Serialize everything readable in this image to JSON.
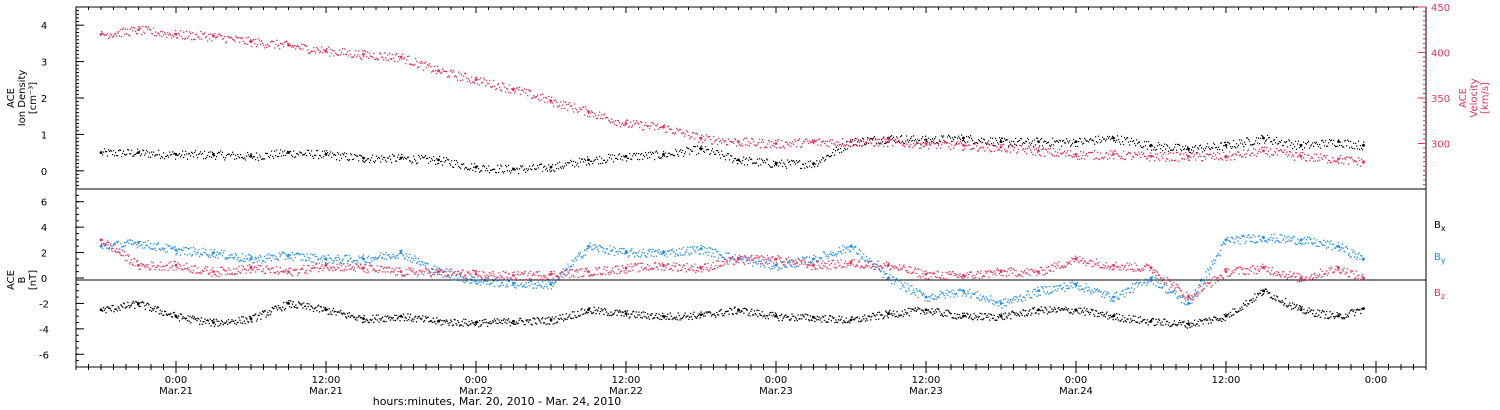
{
  "chart_data": [
    {
      "type": "scatter",
      "panel": "ion-density-velocity",
      "ylabel_left_lines": [
        "ACE",
        "Ion Density",
        "[cm⁻³]"
      ],
      "ylabel_right_lines": [
        "ACE",
        "Velocity",
        "[km/s]"
      ],
      "ylim_left": [
        -0.5,
        4.5
      ],
      "ylim_right": [
        250,
        450
      ],
      "yticks_left": [
        0,
        1,
        2,
        3,
        4
      ],
      "yticks_left_labels": [
        "0",
        "1",
        "2",
        "3",
        "4"
      ],
      "yticks_right": [
        300,
        350,
        400,
        450
      ],
      "yticks_right_labels": [
        "300",
        "350",
        "400",
        "450"
      ],
      "colors": {
        "density": "#000000",
        "velocity": "#e8305a"
      },
      "series": [
        {
          "axis": "left",
          "color": "#000000",
          "x": [
            -6,
            -3,
            0,
            3,
            6,
            9,
            12,
            15,
            18,
            21,
            24,
            27,
            30,
            33,
            36,
            39,
            42,
            45,
            48,
            51,
            54,
            57,
            60,
            63,
            66,
            69,
            72,
            75,
            78,
            81,
            84,
            87,
            90,
            93,
            95
          ],
          "values": [
            0.5,
            0.5,
            0.45,
            0.45,
            0.4,
            0.5,
            0.45,
            0.35,
            0.35,
            0.3,
            0.1,
            0.05,
            0.1,
            0.3,
            0.4,
            0.45,
            0.6,
            0.3,
            0.2,
            0.2,
            0.8,
            0.9,
            0.85,
            0.9,
            0.8,
            0.8,
            0.8,
            0.9,
            0.7,
            0.6,
            0.7,
            0.9,
            0.7,
            0.8,
            0.7
          ]
        },
        {
          "axis": "right",
          "color": "#e8305a",
          "x": [
            -6,
            -3,
            0,
            3,
            6,
            9,
            12,
            15,
            18,
            21,
            24,
            27,
            30,
            33,
            36,
            39,
            42,
            45,
            48,
            51,
            54,
            57,
            60,
            63,
            66,
            69,
            72,
            75,
            78,
            81,
            84,
            87,
            90,
            93,
            95
          ],
          "values": [
            420,
            425,
            420,
            418,
            412,
            408,
            402,
            398,
            395,
            380,
            370,
            360,
            347,
            335,
            322,
            318,
            306,
            302,
            300,
            302,
            302,
            302,
            300,
            298,
            296,
            292,
            288,
            288,
            286,
            286,
            286,
            292,
            286,
            283,
            280
          ]
        }
      ]
    },
    {
      "type": "scatter",
      "panel": "magnetic-field",
      "ylabel_lines": [
        "ACE",
        "B",
        "[nT]"
      ],
      "ylim": [
        -7,
        7
      ],
      "yticks": [
        -6,
        -4,
        -2,
        0,
        2,
        4,
        6
      ],
      "ytick_labels": [
        "-6",
        "-4",
        "-2",
        "0",
        "2",
        "4",
        "6"
      ],
      "colors": {
        "bx": "#000000",
        "by": "#1f8ce8",
        "bz": "#e8305a"
      },
      "series": [
        {
          "name": "Bx",
          "color": "#000000",
          "x": [
            -6,
            -3,
            0,
            3,
            6,
            9,
            12,
            15,
            18,
            21,
            24,
            27,
            30,
            33,
            36,
            39,
            42,
            45,
            48,
            51,
            54,
            57,
            60,
            63,
            66,
            69,
            72,
            75,
            78,
            81,
            84,
            87,
            90,
            93,
            95
          ],
          "values": [
            -2.5,
            -2.0,
            -3.0,
            -3.5,
            -3.2,
            -2.0,
            -2.5,
            -3.2,
            -3.0,
            -3.4,
            -3.5,
            -3.4,
            -3.3,
            -2.5,
            -2.8,
            -3.0,
            -2.9,
            -2.5,
            -3.0,
            -3.1,
            -3.3,
            -2.8,
            -2.5,
            -3.0,
            -3.0,
            -2.5,
            -2.5,
            -3.0,
            -3.4,
            -3.6,
            -3.0,
            -1.0,
            -2.5,
            -3.0,
            -2.4
          ]
        },
        {
          "name": "By",
          "color": "#1f8ce8",
          "x": [
            -6,
            -3,
            0,
            3,
            6,
            9,
            12,
            15,
            18,
            21,
            24,
            27,
            30,
            33,
            36,
            39,
            42,
            45,
            48,
            51,
            54,
            57,
            60,
            63,
            66,
            69,
            72,
            75,
            78,
            81,
            84,
            87,
            90,
            93,
            95
          ],
          "values": [
            2.5,
            2.8,
            2.2,
            2.0,
            1.5,
            1.8,
            1.5,
            1.5,
            2.0,
            0.5,
            -0.2,
            -0.4,
            -0.5,
            2.5,
            2.0,
            2.0,
            2.3,
            1.5,
            1.0,
            1.5,
            2.5,
            0.0,
            -1.5,
            -1.0,
            -2.0,
            -1.0,
            -0.5,
            -1.5,
            0.0,
            -2.0,
            3.0,
            3.2,
            3.0,
            2.5,
            1.5
          ]
        },
        {
          "name": "Bz",
          "color": "#e8305a",
          "x": [
            -6,
            -3,
            0,
            3,
            6,
            9,
            12,
            15,
            18,
            21,
            24,
            27,
            30,
            33,
            36,
            39,
            42,
            45,
            48,
            51,
            54,
            57,
            60,
            63,
            66,
            69,
            72,
            75,
            78,
            81,
            84,
            87,
            90,
            93,
            95
          ],
          "values": [
            3.0,
            1.0,
            1.0,
            0.5,
            0.8,
            0.5,
            1.0,
            0.8,
            0.5,
            0.5,
            0.3,
            0.2,
            0.3,
            0.5,
            0.8,
            1.0,
            0.8,
            1.5,
            1.5,
            1.0,
            1.2,
            1.0,
            0.3,
            0.2,
            0.5,
            0.5,
            1.5,
            1.0,
            0.8,
            -1.5,
            0.5,
            0.8,
            0.0,
            0.8,
            0.0
          ]
        }
      ],
      "legend": [
        "B",
        "B",
        "B"
      ],
      "legend_subscripts": [
        "x",
        "y",
        "z"
      ]
    }
  ],
  "x_axis": {
    "xlim": [
      -8,
      100
    ],
    "ticks": [
      0,
      24,
      48,
      72,
      96
    ],
    "minor_step": 1,
    "labels_time": [
      "0:00",
      "12:00",
      "0:00",
      "12:00",
      "0:00",
      "12:00",
      "0:00",
      "12:00",
      "0:00"
    ],
    "labels_date": [
      "Mar.21",
      "Mar.21",
      "Mar.22",
      "Mar.22",
      "Mar.23",
      "Mar.23",
      "Mar.24"
    ],
    "title": "hours:minutes, Mar. 20, 2010 - Mar. 24, 2010"
  }
}
